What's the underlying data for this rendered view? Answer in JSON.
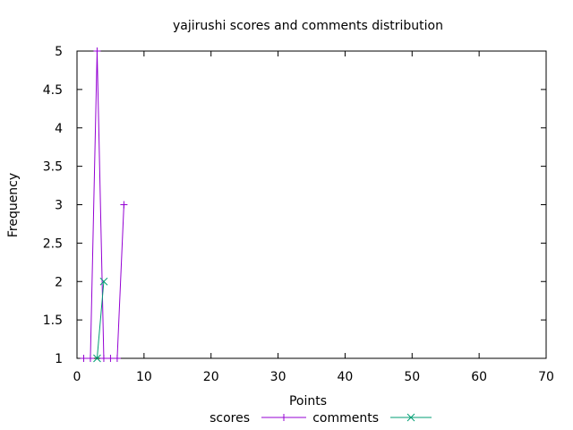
{
  "chart_data": {
    "type": "line",
    "title": "yajirushi scores and comments distribution",
    "xlabel": "Points",
    "ylabel": "Frequency",
    "xlim": [
      0,
      70
    ],
    "ylim": [
      1,
      5
    ],
    "x_ticks": [
      "0",
      "10",
      "20",
      "30",
      "40",
      "50",
      "60",
      "70"
    ],
    "y_ticks": [
      "1",
      "1.5",
      "2",
      "2.5",
      "3",
      "3.5",
      "4",
      "4.5",
      "5"
    ],
    "grid": false,
    "legend_position": "bottom",
    "series": [
      {
        "name": "scores",
        "color": "#9400d3",
        "marker": "plus",
        "points": [
          [
            1,
            1
          ],
          [
            2,
            1
          ],
          [
            3,
            5
          ],
          [
            4,
            1
          ],
          [
            5,
            1
          ],
          [
            6,
            1
          ],
          [
            7,
            3
          ]
        ]
      },
      {
        "name": "comments",
        "color": "#009e73",
        "marker": "cross",
        "points": [
          [
            3,
            1
          ],
          [
            4,
            2
          ]
        ]
      }
    ]
  }
}
